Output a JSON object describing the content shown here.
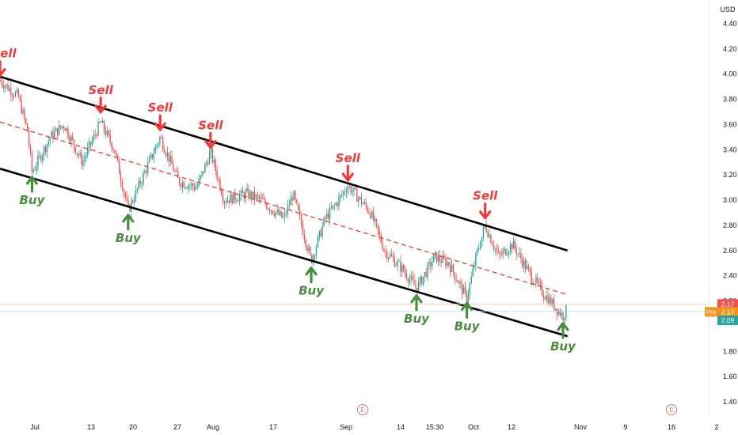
{
  "axis": {
    "currency": "USD",
    "y_ticks": [
      "4.40",
      "4.20",
      "4.00",
      "3.80",
      "3.60",
      "3.40",
      "3.20",
      "3.00",
      "2.80",
      "2.60",
      "2.40",
      "2.20",
      "1.80",
      "1.60",
      "1.40"
    ],
    "x_ticks": [
      "Jul",
      "13",
      "20",
      "27",
      "Aug",
      "17",
      "Sep",
      "14",
      "15:30",
      "Oct",
      "12",
      "Nov",
      "9",
      "16",
      "2"
    ],
    "earnings_marker": "E"
  },
  "price_badges": {
    "last": "2.17",
    "pre_label": "Pre",
    "pre_value": "2.17",
    "current": "2.09"
  },
  "colors": {
    "up": "#26a69a",
    "down": "#ef5350",
    "sell": "#ef3b3b",
    "buy": "#4a8c3f",
    "channel": "#000000",
    "midline": "#e53935",
    "pre_badge": "#f7931a",
    "last_badge": "#ef5350",
    "current_badge": "#26a69a"
  },
  "chart_data": {
    "type": "candlestick",
    "ylim": [
      1.3,
      4.5
    ],
    "channel": {
      "upper": [
        {
          "date": "2025-06-26",
          "price": 3.98
        },
        {
          "date": "2025-10-28",
          "price": 2.6
        }
      ],
      "lower": [
        {
          "date": "2025-06-26",
          "price": 3.25
        },
        {
          "date": "2025-10-28",
          "price": 1.92
        }
      ],
      "middle_dashed": [
        {
          "date": "2025-06-26",
          "price": 3.62
        },
        {
          "date": "2025-10-28",
          "price": 2.25
        }
      ]
    },
    "price_path": [
      {
        "date": "2025-06-26",
        "price": 3.95
      },
      {
        "date": "2025-06-30",
        "price": 3.82
      },
      {
        "date": "2025-07-02",
        "price": 3.55
      },
      {
        "date": "2025-07-03",
        "price": 3.22
      },
      {
        "date": "2025-07-07",
        "price": 3.5
      },
      {
        "date": "2025-07-10",
        "price": 3.6
      },
      {
        "date": "2025-07-14",
        "price": 3.3
      },
      {
        "date": "2025-07-18",
        "price": 3.62
      },
      {
        "date": "2025-07-21",
        "price": 3.4
      },
      {
        "date": "2025-07-24",
        "price": 2.92
      },
      {
        "date": "2025-07-28",
        "price": 3.25
      },
      {
        "date": "2025-07-31",
        "price": 3.5
      },
      {
        "date": "2025-08-04",
        "price": 3.15
      },
      {
        "date": "2025-08-08",
        "price": 3.1
      },
      {
        "date": "2025-08-11",
        "price": 3.38
      },
      {
        "date": "2025-08-14",
        "price": 3.0
      },
      {
        "date": "2025-08-19",
        "price": 3.05
      },
      {
        "date": "2025-08-22",
        "price": 3.0
      },
      {
        "date": "2025-08-27",
        "price": 2.85
      },
      {
        "date": "2025-08-29",
        "price": 3.05
      },
      {
        "date": "2025-09-02",
        "price": 2.52
      },
      {
        "date": "2025-09-05",
        "price": 2.85
      },
      {
        "date": "2025-09-08",
        "price": 3.0
      },
      {
        "date": "2025-09-10",
        "price": 3.12
      },
      {
        "date": "2025-09-15",
        "price": 2.9
      },
      {
        "date": "2025-09-18",
        "price": 2.6
      },
      {
        "date": "2025-09-22",
        "price": 2.45
      },
      {
        "date": "2025-09-25",
        "price": 2.3
      },
      {
        "date": "2025-09-29",
        "price": 2.55
      },
      {
        "date": "2025-10-02",
        "price": 2.5
      },
      {
        "date": "2025-10-06",
        "price": 2.22
      },
      {
        "date": "2025-10-08",
        "price": 2.55
      },
      {
        "date": "2025-10-10",
        "price": 2.8
      },
      {
        "date": "2025-10-13",
        "price": 2.55
      },
      {
        "date": "2025-10-16",
        "price": 2.65
      },
      {
        "date": "2025-10-20",
        "price": 2.4
      },
      {
        "date": "2025-10-23",
        "price": 2.25
      },
      {
        "date": "2025-10-27",
        "price": 2.08
      },
      {
        "date": "2025-10-28",
        "price": 2.15
      }
    ],
    "signals": [
      {
        "type": "sell",
        "label": "Sell",
        "date": "2025-06-26",
        "price": 3.95
      },
      {
        "type": "buy",
        "label": "Buy",
        "date": "2025-07-03",
        "price": 3.22
      },
      {
        "type": "sell",
        "label": "Sell",
        "date": "2025-07-18",
        "price": 3.66
      },
      {
        "type": "buy",
        "label": "Buy",
        "date": "2025-07-24",
        "price": 2.92
      },
      {
        "type": "sell",
        "label": "Sell",
        "date": "2025-07-31",
        "price": 3.52
      },
      {
        "type": "sell",
        "label": "Sell",
        "date": "2025-08-11",
        "price": 3.38
      },
      {
        "type": "buy",
        "label": "Buy",
        "date": "2025-09-02",
        "price": 2.5
      },
      {
        "type": "sell",
        "label": "Sell",
        "date": "2025-09-10",
        "price": 3.12
      },
      {
        "type": "buy",
        "label": "Buy",
        "date": "2025-09-25",
        "price": 2.28
      },
      {
        "type": "buy",
        "label": "Buy",
        "date": "2025-10-06",
        "price": 2.22
      },
      {
        "type": "sell",
        "label": "Sell",
        "date": "2025-10-10",
        "price": 2.82
      },
      {
        "type": "buy",
        "label": "Buy",
        "date": "2025-10-27",
        "price": 2.06
      }
    ]
  }
}
